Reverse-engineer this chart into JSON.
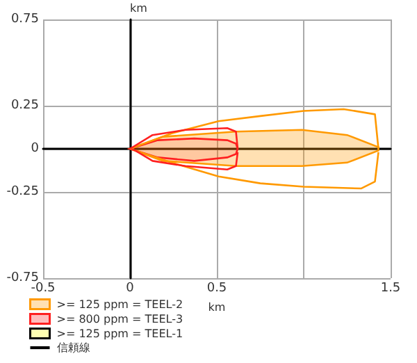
{
  "chart_data": {
    "type": "area",
    "xlabel": "km",
    "ylabel": "km",
    "xlim": [
      -0.5,
      1.5
    ],
    "xticks": [
      -0.5,
      0,
      0.5,
      {
        "value": 1,
        "label": null
      },
      1.5
    ],
    "ylim": [
      -0.75,
      0.75
    ],
    "yticks": [
      -0.75,
      -0.25,
      0,
      0.25,
      0.75
    ],
    "grid": true,
    "legend": "bottom left",
    "series": [
      {
        "type": "line",
        "color": "#ff9900",
        "x": [
          0,
          0.24,
          0.51,
          0.75,
          1.0,
          1.23,
          1.41,
          1.43
        ],
        "values": [
          0,
          0.09,
          0.16,
          0.19,
          0.22,
          0.23,
          0.2,
          0
        ]
      },
      {
        "type": "line",
        "color": "#ff9900",
        "x": [
          0.03,
          0.24,
          0.51,
          0.75,
          1.0,
          1.33,
          1.41,
          1.43
        ],
        "values": [
          -0.01,
          -0.08,
          -0.16,
          -0.2,
          -0.22,
          -0.23,
          -0.19,
          -0.02
        ]
      },
      {
        "name": ">= 125 ppm = TEEL-2",
        "color": "#ff9900",
        "x": [
          0,
          0.19,
          0.61,
          0.99,
          1.25,
          1.43,
          1.43,
          1.25,
          0.99,
          0.61,
          0.19,
          0
        ],
        "values": [
          0,
          0.07,
          0.1,
          0.11,
          0.08,
          0.01,
          -0.01,
          -0.08,
          -0.1,
          -0.1,
          -0.07,
          0
        ]
      },
      {
        "type": "line",
        "color": "#ff2020",
        "x": [
          0,
          0.13,
          0.32,
          0.56,
          0.61,
          0.62
        ],
        "values": [
          0,
          0.08,
          0.11,
          0.12,
          0.1,
          0
        ]
      },
      {
        "type": "line",
        "color": "#ff2020",
        "x": [
          0.03,
          0.13,
          0.32,
          0.56,
          0.61,
          0.62
        ],
        "values": [
          -0.01,
          -0.07,
          -0.1,
          -0.12,
          -0.1,
          -0.02
        ]
      },
      {
        "name": ">= 800 ppm = TEEL-3",
        "color": "#ff2020",
        "x": [
          0,
          0.16,
          0.37,
          0.56,
          0.61,
          0.62,
          0.61,
          0.56,
          0.37,
          0.16,
          0
        ],
        "values": [
          0,
          0.05,
          0.06,
          0.05,
          0.03,
          0,
          -0.03,
          -0.05,
          -0.07,
          -0.05,
          0
        ]
      },
      {
        "name": ">= 125 ppm = TEEL-1",
        "color": "#ffff00"
      },
      {
        "type": "line",
        "name": "信頼線",
        "color": "#000000"
      }
    ]
  }
}
